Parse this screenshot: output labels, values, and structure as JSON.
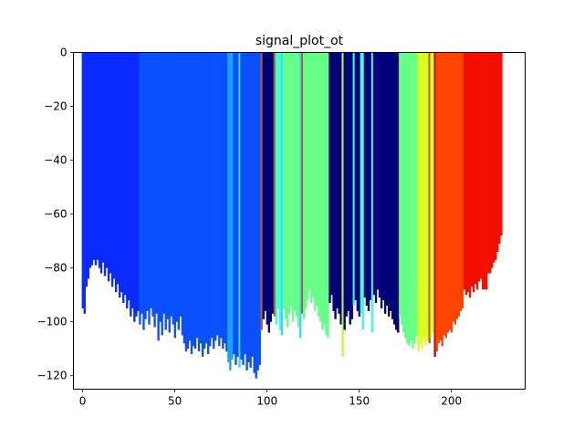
{
  "chart_data": {
    "type": "bar",
    "title": "signal_plot_ot",
    "xlabel": "",
    "ylabel": "",
    "xlim": [
      -5,
      240
    ],
    "ylim": [
      -125,
      0
    ],
    "x_ticks": [
      0,
      50,
      100,
      150,
      200
    ],
    "x_tick_labels": [
      "0",
      "50",
      "100",
      "150",
      "200"
    ],
    "y_ticks": [
      0,
      -20,
      -40,
      -60,
      -80,
      -100,
      -120
    ],
    "y_tick_labels": [
      "0",
      "−20",
      "−40",
      "−60",
      "−80",
      "−100",
      "−120"
    ],
    "bar_width": 1,
    "grid": false,
    "legend": "none",
    "colors": {
      "blue": "#0a2bff",
      "mid_blue": "#0a50ff",
      "sky": "#1aa3ff",
      "cyan": "#2ee0ff",
      "teal": "#3fffcf",
      "green": "#66ff88",
      "lime": "#b8ff3a",
      "yellow": "#d8ff20",
      "navy": "#00007a",
      "orange": "#ff4500",
      "red": "#f20e00",
      "dark_red": "#b31200",
      "bronze": "#c05a20"
    },
    "segments": [
      {
        "from": 0,
        "to": 26,
        "color": "blue",
        "values": [
          -95,
          -97,
          -87,
          -84,
          -80,
          -79,
          -77,
          -79,
          -77,
          -80,
          -82,
          -78,
          -83,
          -80,
          -85,
          -82,
          -87,
          -84,
          -89,
          -86,
          -91,
          -89,
          -93,
          -90,
          -95,
          -92,
          -98
        ]
      },
      {
        "from": 27,
        "to": 30,
        "color": "blue",
        "values": [
          -95,
          -100,
          -98,
          -96
        ]
      },
      {
        "from": 31,
        "to": 78,
        "color": "mid_blue",
        "values": [
          -101,
          -97,
          -103,
          -99,
          -96,
          -101,
          -95,
          -98,
          -102,
          -97,
          -107,
          -100,
          -105,
          -97,
          -103,
          -99,
          -104,
          -98,
          -101,
          -106,
          -100,
          -103,
          -98,
          -105,
          -108,
          -111,
          -110,
          -107,
          -112,
          -109,
          -110,
          -106,
          -111,
          -108,
          -113,
          -110,
          -108,
          -112,
          -109,
          -106,
          -110,
          -107,
          -105,
          -109,
          -106,
          -110,
          -108,
          -111
        ]
      },
      {
        "from": 79,
        "to": 81,
        "color": "sky",
        "values": [
          -115,
          -118,
          -114
        ]
      },
      {
        "from": 82,
        "to": 84,
        "color": "mid_blue",
        "values": [
          -112,
          -116,
          -113
        ]
      },
      {
        "from": 85,
        "to": 85,
        "color": "cyan",
        "values": [
          -117
        ]
      },
      {
        "from": 86,
        "to": 96,
        "color": "mid_blue",
        "values": [
          -114,
          -116,
          -112,
          -118,
          -115,
          -117,
          -113,
          -119,
          -121,
          -118,
          -116
        ]
      },
      {
        "from": 97,
        "to": 97,
        "color": "bronze",
        "values": [
          -103
        ]
      },
      {
        "from": 98,
        "to": 103,
        "color": "navy",
        "values": [
          -99,
          -96,
          -101,
          -104,
          -100,
          -97
        ]
      },
      {
        "from": 104,
        "to": 104,
        "color": "bronze",
        "values": [
          -98
        ]
      },
      {
        "from": 105,
        "to": 107,
        "color": "teal",
        "values": [
          -101,
          -95,
          -103
        ]
      },
      {
        "from": 108,
        "to": 108,
        "color": "cyan",
        "values": [
          -105
        ]
      },
      {
        "from": 109,
        "to": 117,
        "color": "green",
        "values": [
          -95,
          -99,
          -102,
          -97,
          -94,
          -100,
          -96,
          -98,
          -102
        ]
      },
      {
        "from": 118,
        "to": 118,
        "color": "cyan",
        "values": [
          -106
        ]
      },
      {
        "from": 119,
        "to": 119,
        "color": "bronze",
        "values": [
          -97
        ]
      },
      {
        "from": 120,
        "to": 133,
        "color": "green",
        "values": [
          -99,
          -95,
          -92,
          -88,
          -93,
          -91,
          -96,
          -94,
          -98,
          -100,
          -103,
          -101,
          -105,
          -106
        ]
      },
      {
        "from": 134,
        "to": 140,
        "color": "navy",
        "values": [
          -93,
          -90,
          -96,
          -99,
          -95,
          -97,
          -101
        ]
      },
      {
        "from": 141,
        "to": 141,
        "color": "lime",
        "values": [
          -113
        ]
      },
      {
        "from": 142,
        "to": 146,
        "color": "navy",
        "values": [
          -103,
          -98,
          -96,
          -101,
          -99
        ]
      },
      {
        "from": 147,
        "to": 147,
        "color": "teal",
        "values": [
          -94
        ]
      },
      {
        "from": 148,
        "to": 150,
        "color": "navy",
        "values": [
          -92,
          -96,
          -98
        ]
      },
      {
        "from": 151,
        "to": 152,
        "color": "teal",
        "values": [
          -97,
          -103
        ]
      },
      {
        "from": 153,
        "to": 156,
        "color": "navy",
        "values": [
          -91,
          -94,
          -96,
          -92
        ]
      },
      {
        "from": 157,
        "to": 157,
        "color": "teal",
        "values": [
          -104
        ]
      },
      {
        "from": 158,
        "to": 171,
        "color": "navy",
        "values": [
          -90,
          -93,
          -88,
          -91,
          -95,
          -92,
          -97,
          -94,
          -98,
          -96,
          -99,
          -101,
          -103,
          -104
        ]
      },
      {
        "from": 172,
        "to": 181,
        "color": "green",
        "values": [
          -98,
          -101,
          -104,
          -106,
          -108,
          -109,
          -107,
          -110,
          -108,
          -105
        ]
      },
      {
        "from": 182,
        "to": 187,
        "color": "yellow",
        "values": [
          -111,
          -108,
          -110,
          -106,
          -109,
          -107
        ]
      },
      {
        "from": 188,
        "to": 188,
        "color": "bronze",
        "values": [
          -108
        ]
      },
      {
        "from": 189,
        "to": 190,
        "color": "yellow",
        "values": [
          -106,
          -104
        ]
      },
      {
        "from": 191,
        "to": 191,
        "color": "dark_red",
        "values": [
          -113
        ]
      },
      {
        "from": 192,
        "to": 206,
        "color": "orange",
        "values": [
          -111,
          -108,
          -107,
          -109,
          -105,
          -106,
          -104,
          -103,
          -104,
          -100,
          -101,
          -99,
          -98,
          -96,
          -95
        ]
      },
      {
        "from": 207,
        "to": 227,
        "color": "red",
        "values": [
          -88,
          -90,
          -89,
          -91,
          -87,
          -89,
          -86,
          -88,
          -85,
          -84,
          -88,
          -88,
          -88,
          -82,
          -82,
          -80,
          -78,
          -77,
          -74,
          -71,
          -68
        ]
      }
    ]
  }
}
